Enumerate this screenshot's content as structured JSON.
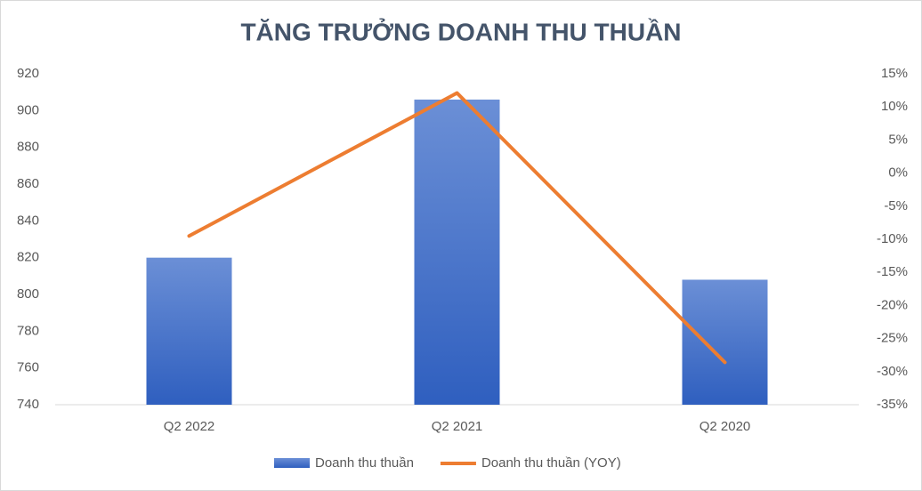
{
  "chart_data": {
    "type": "bar-line",
    "title": "TĂNG TRƯỞNG DOANH THU THUẦN",
    "categories": [
      "Q2 2022",
      "Q2 2021",
      "Q2 2020"
    ],
    "series": [
      {
        "name": "Doanh thu thuần",
        "type": "bar",
        "color": "#4472c4",
        "values": [
          820,
          906,
          808
        ]
      },
      {
        "name": "Doanh thu thuần (YOY)",
        "type": "line",
        "axis": "y2",
        "color": "#ed7d31",
        "values": [
          -9.5,
          12.1,
          -28.6
        ]
      }
    ],
    "ylim": [
      740,
      920
    ],
    "yticks": [
      740,
      760,
      780,
      800,
      820,
      840,
      860,
      880,
      900,
      920
    ],
    "y2lim": [
      -35,
      15
    ],
    "y2ticks": [
      {
        "value": -35,
        "label": "-35%"
      },
      {
        "value": -30,
        "label": "-30%"
      },
      {
        "value": -25,
        "label": "-25%"
      },
      {
        "value": -20,
        "label": "-20%"
      },
      {
        "value": -15,
        "label": "-15%"
      },
      {
        "value": -10,
        "label": "-10%"
      },
      {
        "value": -5,
        "label": "-5%"
      },
      {
        "value": 0,
        "label": "0%"
      },
      {
        "value": 5,
        "label": "5%"
      },
      {
        "value": 10,
        "label": "10%"
      },
      {
        "value": 15,
        "label": "15%"
      }
    ],
    "grid": false,
    "legend": "bottom"
  }
}
